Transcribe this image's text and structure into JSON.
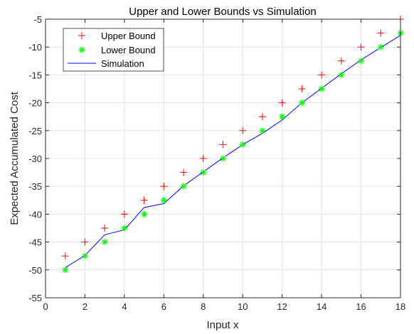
{
  "chart_data": {
    "type": "line",
    "title": "Upper and Lower Bounds vs Simulation",
    "xlabel": "Input x",
    "ylabel": "Expected Accumulated Cost",
    "xlim": [
      0,
      18
    ],
    "ylim": [
      -55,
      -5
    ],
    "xticks": [
      0,
      2,
      4,
      6,
      8,
      10,
      12,
      14,
      16,
      18
    ],
    "yticks": [
      -55,
      -50,
      -45,
      -40,
      -35,
      -30,
      -25,
      -20,
      -15,
      -10,
      -5
    ],
    "grid": true,
    "legend_position": "top-left",
    "x": [
      1,
      2,
      3,
      4,
      5,
      6,
      7,
      8,
      9,
      10,
      11,
      12,
      13,
      14,
      15,
      16,
      17,
      18
    ],
    "series": [
      {
        "name": "Upper Bound",
        "style": "markers",
        "marker": "plus",
        "color": "#ff0000",
        "values": [
          -47.5,
          -45,
          -42.5,
          -40,
          -37.5,
          -35,
          -32.5,
          -30,
          -27.5,
          -25,
          -22.5,
          -20,
          -17.5,
          -15,
          -12.5,
          -10,
          -7.5,
          -5
        ]
      },
      {
        "name": "Lower Bound",
        "style": "markers",
        "marker": "asterisk",
        "color": "#00ff00",
        "values": [
          -50,
          -47.5,
          -45,
          -42.5,
          -40,
          -37.5,
          -35,
          -32.5,
          -30,
          -27.5,
          -25,
          -22.5,
          -20,
          -17.5,
          -15,
          -12.5,
          -10,
          -7.5
        ]
      },
      {
        "name": "Simulation",
        "style": "line",
        "color": "#0000ff",
        "values": [
          -49.6,
          -47.4,
          -43.7,
          -42.8,
          -38.8,
          -38.1,
          -34.9,
          -32.4,
          -29.9,
          -27.5,
          -25.5,
          -23.1,
          -20.0,
          -17.4,
          -14.8,
          -12.3,
          -10.1,
          -7.9
        ]
      }
    ]
  }
}
